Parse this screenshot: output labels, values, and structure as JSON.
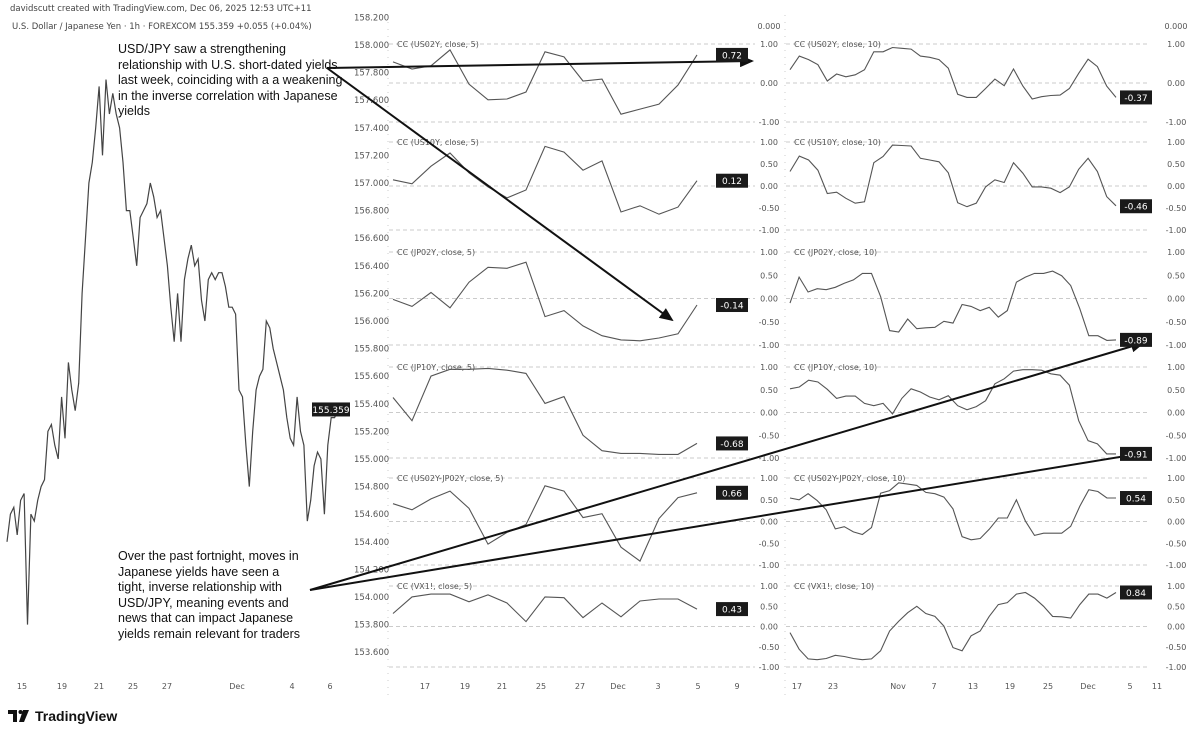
{
  "header": {
    "credit": "davidscutt created with TradingView.com, Dec 06, 2025 12:53 UTC+11",
    "symbol_line": "U.S. Dollar / Japanese Yen · 1h · FOREXCOM  155.359  +0.055 (+0.04%)"
  },
  "annotations": {
    "top_note": "USD/JPY saw a strengthening relationship with U.S. short-dated yields last week, coinciding with a a weakening in the inverse correlation with Japanese yields",
    "bottom_note": "Over the past fortnight, moves in Japanese yields have seen a tight, inverse relationship with USD/JPY, meaning events and news that can impact Japanese yields remain relevant for traders"
  },
  "branding": {
    "logo_text": "TradingView"
  },
  "colors": {
    "line": "#555555",
    "badge_bg": "#1a1a1a",
    "badge_text": "#ffffff",
    "grid": "#bbbbbb",
    "arrow": "#111111"
  },
  "chart_data": [
    {
      "type": "line",
      "title": "U.S. Dollar / Japanese Yen · 1h · FOREXCOM",
      "last_value_label": "155.359",
      "ylim": [
        153.6,
        158.2
      ],
      "y_ticks": [
        "158.200",
        "158.000",
        "157.800",
        "157.600",
        "157.400",
        "157.200",
        "157.000",
        "156.800",
        "156.600",
        "156.400",
        "156.200",
        "156.000",
        "155.800",
        "155.600",
        "155.400",
        "155.200",
        "155.000",
        "154.800",
        "154.600",
        "154.400",
        "154.200",
        "154.000",
        "153.800",
        "153.600"
      ],
      "x_ticks": [
        "15",
        "19",
        "21",
        "25",
        "27",
        "Dec",
        "4",
        "6"
      ],
      "values": [
        154.4,
        154.6,
        154.65,
        154.45,
        154.7,
        154.75,
        153.8,
        154.6,
        154.55,
        154.7,
        154.8,
        154.85,
        155.2,
        155.25,
        155.1,
        155.0,
        155.45,
        155.15,
        155.7,
        155.5,
        155.35,
        155.55,
        156.2,
        156.6,
        157.0,
        157.15,
        157.4,
        157.7,
        157.2,
        157.75,
        157.5,
        157.65,
        157.5,
        157.4,
        157.15,
        156.8,
        156.8,
        156.6,
        156.4,
        156.75,
        156.8,
        156.85,
        157.0,
        156.9,
        156.75,
        156.8,
        156.6,
        156.4,
        156.1,
        155.85,
        156.2,
        155.85,
        156.3,
        156.45,
        156.55,
        156.4,
        156.45,
        156.15,
        156.0,
        156.3,
        156.35,
        156.3,
        156.35,
        156.35,
        156.25,
        156.1,
        156.1,
        156.05,
        155.5,
        155.45,
        155.1,
        154.8,
        155.2,
        155.5,
        155.6,
        155.65,
        156.0,
        155.95,
        155.8,
        155.7,
        155.6,
        155.5,
        155.3,
        155.15,
        155.1,
        155.45,
        155.2,
        155.1,
        154.55,
        154.7,
        154.95,
        155.05,
        155.0,
        154.6,
        155.1,
        155.3,
        155.3,
        155.359
      ]
    },
    {
      "type": "line",
      "group": "5-period correlations",
      "x_ticks": [
        "17",
        "19",
        "21",
        "25",
        "27",
        "Dec",
        "3",
        "5",
        "9"
      ],
      "ylim": [
        -1,
        1
      ],
      "panes": [
        {
          "label": "CC (US02Y, close, 5)",
          "last": "0.72",
          "ticks": [
            "0.000",
            "1.00",
            "0.00",
            "-1.00"
          ],
          "values": [
            0.54,
            0.36,
            0.44,
            0.85,
            -0.03,
            -0.43,
            -0.41,
            -0.23,
            0.8,
            0.67,
            0.05,
            0.1,
            -0.8,
            -0.67,
            -0.54,
            -0.05,
            0.72
          ]
        },
        {
          "label": "CC (US10Y, close, 5)",
          "last": "0.12",
          "ticks": [
            "1.00",
            "0.50",
            "0.00",
            "-0.50",
            "-1.00"
          ],
          "values": [
            0.14,
            0.05,
            0.45,
            0.75,
            0.3,
            -0.02,
            -0.27,
            -0.09,
            0.9,
            0.77,
            0.36,
            0.57,
            -0.59,
            -0.45,
            -0.64,
            -0.48,
            0.12
          ]
        },
        {
          "label": "CC (JP02Y, close, 5)",
          "last": "-0.14",
          "ticks": [
            "1.00",
            "0.50",
            "0.00",
            "-0.50",
            "-1.00"
          ],
          "values": [
            -0.02,
            -0.17,
            0.13,
            -0.2,
            0.35,
            0.67,
            0.65,
            0.78,
            -0.39,
            -0.26,
            -0.59,
            -0.8,
            -0.89,
            -0.91,
            -0.85,
            -0.76,
            -0.14
          ]
        },
        {
          "label": "CC (JP10Y, close, 5)",
          "last": "-0.68",
          "ticks": [
            "1.00",
            "0.50",
            "0.00",
            "-0.50",
            "-1.00"
          ],
          "values": [
            0.33,
            -0.18,
            0.8,
            0.95,
            0.95,
            0.97,
            0.93,
            0.86,
            0.2,
            0.35,
            -0.5,
            -0.84,
            -0.9,
            -0.9,
            -0.92,
            -0.92,
            -0.68
          ]
        },
        {
          "label": "CC (US02Y-JP02Y, close, 5)",
          "last": "0.66",
          "ticks": [
            "1.00",
            "0.50",
            "0.00",
            "-0.50",
            "-1.00"
          ],
          "values": [
            0.41,
            0.27,
            0.52,
            0.7,
            0.3,
            -0.52,
            -0.25,
            -0.07,
            0.82,
            0.7,
            0.09,
            0.18,
            -0.59,
            -0.91,
            0.07,
            0.55,
            0.66
          ]
        },
        {
          "label": "CC (VX1!, close, 5)",
          "last": "0.43",
          "ticks": [
            "1.00",
            "0.50",
            "0.00",
            "-0.50",
            "-1.00"
          ],
          "values": [
            0.32,
            0.73,
            0.8,
            0.8,
            0.61,
            0.78,
            0.58,
            0.12,
            0.73,
            0.71,
            0.22,
            0.58,
            0.24,
            0.63,
            0.68,
            0.68,
            0.43
          ]
        }
      ]
    },
    {
      "type": "line",
      "group": "10-period correlations",
      "x_ticks": [
        "17",
        "23",
        "Nov",
        "7",
        "13",
        "19",
        "25",
        "Dec",
        "5",
        "11"
      ],
      "ylim": [
        -1,
        1
      ],
      "panes": [
        {
          "label": "CC (US02Y, close, 10)",
          "last": "-0.37",
          "ticks": [
            "0.000",
            "1.00",
            "0.00",
            "-1.00"
          ],
          "values": [
            0.34,
            0.69,
            0.6,
            0.47,
            0.05,
            0.23,
            0.16,
            0.21,
            0.34,
            0.8,
            0.8,
            0.91,
            0.89,
            0.87,
            0.69,
            0.66,
            0.6,
            0.38,
            -0.29,
            -0.37,
            -0.37,
            -0.14,
            0.1,
            -0.07,
            0.36,
            -0.08,
            -0.41,
            -0.35,
            -0.32,
            -0.31,
            -0.14,
            0.25,
            0.61,
            0.42,
            -0.08,
            -0.37
          ]
        },
        {
          "label": "CC (US10Y, close, 10)",
          "last": "-0.46",
          "ticks": [
            "1.00",
            "0.50",
            "0.00",
            "-0.50",
            "-1.00"
          ],
          "values": [
            0.33,
            0.68,
            0.59,
            0.36,
            -0.17,
            -0.14,
            -0.28,
            -0.39,
            -0.36,
            0.53,
            0.67,
            0.93,
            0.92,
            0.91,
            0.63,
            0.59,
            0.55,
            0.3,
            -0.38,
            -0.47,
            -0.39,
            -0.02,
            0.14,
            0.08,
            0.53,
            0.29,
            -0.02,
            -0.02,
            -0.05,
            -0.15,
            -0.02,
            0.38,
            0.63,
            0.33,
            -0.24,
            -0.45
          ]
        },
        {
          "label": "CC (JP02Y, close, 10)",
          "last": "-0.89",
          "ticks": [
            "1.00",
            "0.50",
            "0.00",
            "-0.50",
            "-1.00"
          ],
          "values": [
            -0.1,
            0.46,
            0.14,
            0.21,
            0.19,
            0.24,
            0.33,
            0.4,
            0.54,
            0.54,
            0.04,
            -0.69,
            -0.72,
            -0.44,
            -0.65,
            -0.63,
            -0.62,
            -0.49,
            -0.53,
            -0.13,
            -0.17,
            -0.26,
            -0.19,
            -0.4,
            -0.26,
            0.35,
            0.46,
            0.54,
            0.54,
            0.59,
            0.49,
            0.28,
            -0.22,
            -0.8,
            -0.8,
            -0.9,
            -0.89
          ]
        },
        {
          "label": "CC (JP10Y, close, 10)",
          "last": "-0.91",
          "ticks": [
            "1.00",
            "0.50",
            "0.00",
            "-0.50",
            "-1.00"
          ],
          "values": [
            0.52,
            0.56,
            0.71,
            0.67,
            0.51,
            0.31,
            0.36,
            0.36,
            0.2,
            0.15,
            0.2,
            -0.03,
            0.31,
            0.52,
            0.45,
            0.34,
            0.28,
            0.37,
            0.15,
            0.06,
            0.13,
            0.26,
            0.63,
            0.74,
            0.91,
            0.94,
            0.94,
            0.93,
            0.85,
            0.82,
            0.6,
            -0.18,
            -0.62,
            -0.69,
            -0.91,
            -0.91
          ]
        },
        {
          "label": "CC (US02Y-JP02Y, close, 10)",
          "last": "0.54",
          "ticks": [
            "1.00",
            "0.50",
            "0.00",
            "-0.50",
            "-1.00"
          ],
          "values": [
            0.54,
            0.5,
            0.64,
            0.48,
            0.27,
            -0.17,
            -0.12,
            -0.24,
            -0.3,
            -0.14,
            0.65,
            0.71,
            0.89,
            0.86,
            0.83,
            0.67,
            0.64,
            0.56,
            0.29,
            -0.35,
            -0.42,
            -0.39,
            -0.18,
            0.08,
            0.08,
            0.5,
            0.01,
            -0.32,
            -0.27,
            -0.27,
            -0.27,
            -0.11,
            0.35,
            0.73,
            0.69,
            0.54,
            0.54
          ]
        },
        {
          "label": "CC (VX1!, close, 10)",
          "last": "0.84",
          "ticks": [
            "1.00",
            "0.50",
            "0.00",
            "-0.50",
            "-1.00"
          ],
          "values": [
            -0.15,
            -0.56,
            -0.8,
            -0.82,
            -0.79,
            -0.71,
            -0.74,
            -0.79,
            -0.82,
            -0.8,
            -0.6,
            -0.11,
            0.13,
            0.34,
            0.5,
            0.32,
            0.25,
            0.01,
            -0.52,
            -0.6,
            -0.23,
            -0.11,
            0.25,
            0.54,
            0.59,
            0.8,
            0.84,
            0.7,
            0.5,
            0.25,
            0.24,
            0.21,
            0.54,
            0.8,
            0.8,
            0.7,
            0.84
          ]
        }
      ]
    }
  ]
}
